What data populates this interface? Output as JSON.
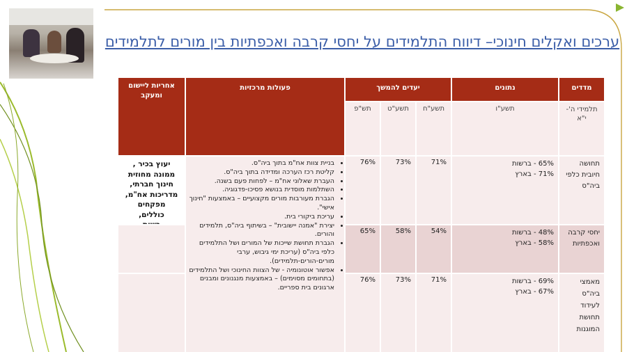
{
  "title": "ערכים ואקלים חינוכי– דיווח התלמידים על יחסי קרבה ואכפתיות בין מורים לתלמידים",
  "table": {
    "headers": {
      "measures": "מדדים",
      "data": "נתונים",
      "targets": "יעדים להמשך",
      "actions": "פעולות מרכזיות",
      "responsibility": "אחריות ליישום ומעקב"
    },
    "subheaders": {
      "students": "תלמידי ה'-י\"א",
      "year_data": "תשע\"ו",
      "y1": "תשע\"ח",
      "y2": "תשע\"ט",
      "y3": "תש\"פ"
    },
    "rows": [
      {
        "measure": "תחושה חיובית כלפי ביה\"ס",
        "data_line1": "65% - ברשות",
        "data_line2": "71% - בארץ",
        "t1": "71%",
        "t2": "73%",
        "t3": "76%"
      },
      {
        "measure": "יחסי קרבה ואכפתיות",
        "data_line1": "48% - ברשות",
        "data_line2": "58% - בארץ",
        "t1": "54%",
        "t2": "58%",
        "t3": "65%"
      },
      {
        "measure": "מאמצי ביה\"ס לעידוד תחושת המוגנות",
        "data_line1": "69% - ברשות",
        "data_line2": "67% - בארץ",
        "t1": "71%",
        "t2": "73%",
        "t3": "76%"
      }
    ],
    "actions": [
      "בניית צוות אח\"מ בתוך ביה\"ס.",
      "קליטת רכז הערכה ומדידה בתוך ביה\"ס.",
      "העברת שאלוני אח\"מ – לפחות פעם בשנה.",
      "השתלמות מוסדית בנושא פסיכו-פדגוגיה.",
      "הגברת מעורבות מורים מקצועיים – באמצעות \"חינוך אישי\".",
      "עריכת ביקורי בית.",
      "יצירת \"אמנה יישובית\" – בשיתוף ביה\"ס, תלמידים והורים.",
      "הגברת תחושת שייכות של המורים ושל התלמידים כלפי ביה\"ס (עריכת ימי גיבוש, ערבי מורים-הורים-תלמידים).",
      "אפשור אוטונומיה - של הצוות החינוכי ושל התלמידים (בתחומים מסוימים) – באמצעות מנגנונים ומבנים ארגונים בית ספריים."
    ],
    "responsibility": [
      "יעוץ בכיר ,",
      "ממונה מחוזית",
      "חינוך חברתי,",
      "מדריכות אח\"מ,",
      "מפקחים",
      "כוללים,",
      "רשות"
    ]
  },
  "colors": {
    "header": "#a52c16",
    "title": "#3b5ea8",
    "accent_green": "#9bbb2c",
    "frame_gold": "#c9a640"
  }
}
